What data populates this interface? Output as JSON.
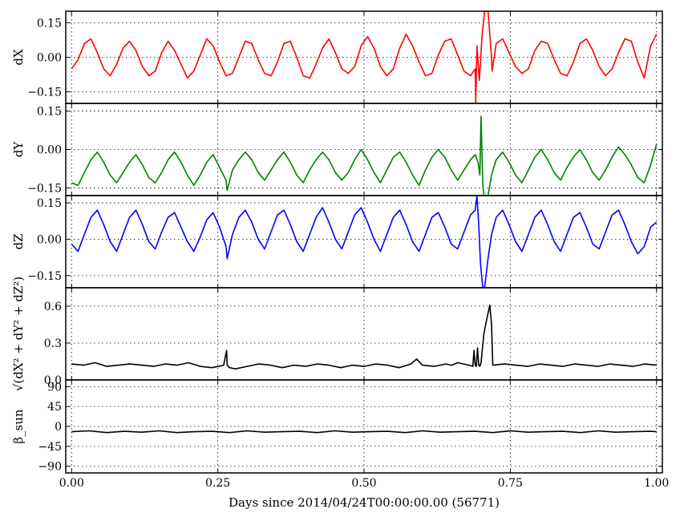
{
  "chart_data": {
    "type": "line",
    "xlabel": "Days since 2014/04/24T00:00:00.00 (56771)",
    "xlim": [
      -0.01,
      1.01
    ],
    "xticks": [
      0.0,
      0.25,
      0.5,
      0.75,
      1.0
    ],
    "xtick_labels": [
      "0.00",
      "0.25",
      "0.50",
      "0.75",
      "1.00"
    ],
    "grid": true,
    "panels": [
      {
        "key": "dx",
        "ylabel": "dX",
        "ylim": [
          -0.2,
          0.2
        ],
        "yticks": [
          -0.15,
          0.0,
          0.15
        ],
        "ytick_labels": [
          "−0.15",
          "0.00",
          "0.15"
        ],
        "color": "#ff0000",
        "series": {
          "name": "dX",
          "x": [
            0.0,
            0.011,
            0.022,
            0.033,
            0.044,
            0.055,
            0.066,
            0.077,
            0.088,
            0.099,
            0.11,
            0.121,
            0.132,
            0.143,
            0.154,
            0.165,
            0.176,
            0.187,
            0.198,
            0.209,
            0.22,
            0.231,
            0.242,
            0.253,
            0.264,
            0.275,
            0.286,
            0.297,
            0.308,
            0.319,
            0.33,
            0.341,
            0.352,
            0.363,
            0.374,
            0.385,
            0.396,
            0.407,
            0.418,
            0.429,
            0.44,
            0.451,
            0.462,
            0.473,
            0.484,
            0.495,
            0.506,
            0.517,
            0.528,
            0.539,
            0.55,
            0.561,
            0.572,
            0.583,
            0.594,
            0.605,
            0.616,
            0.627,
            0.638,
            0.649,
            0.66,
            0.671,
            0.682,
            0.69,
            0.691,
            0.693,
            0.697,
            0.702,
            0.706,
            0.712,
            0.718,
            0.719,
            0.726,
            0.737,
            0.748,
            0.759,
            0.77,
            0.781,
            0.792,
            0.803,
            0.814,
            0.825,
            0.836,
            0.847,
            0.858,
            0.869,
            0.88,
            0.891,
            0.902,
            0.913,
            0.924,
            0.935,
            0.946,
            0.957,
            0.968,
            0.979,
            0.99,
            1.0
          ],
          "y": [
            -0.05,
            -0.01,
            0.06,
            0.08,
            0.02,
            -0.05,
            -0.08,
            -0.03,
            0.04,
            0.07,
            0.03,
            -0.04,
            -0.08,
            -0.06,
            0.02,
            0.07,
            0.03,
            -0.03,
            -0.09,
            -0.06,
            0.01,
            0.08,
            0.05,
            -0.02,
            -0.08,
            -0.07,
            0.0,
            0.07,
            0.06,
            -0.01,
            -0.07,
            -0.08,
            -0.02,
            0.06,
            0.07,
            0.0,
            -0.08,
            -0.09,
            -0.03,
            0.04,
            0.08,
            0.02,
            -0.05,
            -0.07,
            -0.04,
            0.05,
            0.09,
            0.04,
            -0.04,
            -0.08,
            -0.05,
            0.04,
            0.1,
            0.05,
            -0.02,
            -0.08,
            -0.07,
            0.01,
            0.07,
            0.08,
            0.01,
            -0.06,
            -0.08,
            -0.05,
            -0.2,
            0.05,
            -0.1,
            0.1,
            0.2,
            0.2,
            0.0,
            -0.06,
            0.06,
            0.08,
            0.02,
            -0.04,
            -0.07,
            -0.05,
            0.03,
            0.07,
            0.06,
            -0.01,
            -0.07,
            -0.08,
            -0.02,
            0.06,
            0.08,
            0.03,
            -0.04,
            -0.08,
            -0.05,
            0.02,
            0.08,
            0.07,
            -0.02,
            -0.09,
            0.05,
            0.1
          ]
        }
      },
      {
        "key": "dy",
        "ylabel": "dY",
        "ylim": [
          -0.18,
          0.18
        ],
        "yticks": [
          -0.15,
          0.0,
          0.15
        ],
        "ytick_labels": [
          "−0.15",
          "0.00",
          "0.15"
        ],
        "color": "#008000",
        "series": {
          "name": "dY",
          "x": [
            0.0,
            0.011,
            0.022,
            0.033,
            0.044,
            0.055,
            0.066,
            0.077,
            0.088,
            0.099,
            0.11,
            0.121,
            0.132,
            0.143,
            0.154,
            0.165,
            0.176,
            0.187,
            0.198,
            0.209,
            0.22,
            0.231,
            0.242,
            0.253,
            0.264,
            0.266,
            0.275,
            0.286,
            0.297,
            0.308,
            0.319,
            0.33,
            0.341,
            0.352,
            0.363,
            0.374,
            0.385,
            0.396,
            0.407,
            0.418,
            0.429,
            0.44,
            0.451,
            0.462,
            0.473,
            0.484,
            0.495,
            0.506,
            0.517,
            0.528,
            0.539,
            0.55,
            0.561,
            0.572,
            0.583,
            0.594,
            0.605,
            0.616,
            0.627,
            0.638,
            0.649,
            0.66,
            0.671,
            0.682,
            0.69,
            0.695,
            0.698,
            0.7,
            0.703,
            0.705,
            0.712,
            0.718,
            0.726,
            0.737,
            0.748,
            0.759,
            0.77,
            0.781,
            0.792,
            0.803,
            0.814,
            0.825,
            0.836,
            0.847,
            0.858,
            0.869,
            0.88,
            0.891,
            0.902,
            0.913,
            0.924,
            0.935,
            0.946,
            0.957,
            0.968,
            0.979,
            0.99,
            1.0
          ],
          "y": [
            -0.13,
            -0.14,
            -0.09,
            -0.04,
            -0.01,
            -0.05,
            -0.1,
            -0.13,
            -0.09,
            -0.05,
            -0.02,
            -0.06,
            -0.11,
            -0.13,
            -0.09,
            -0.04,
            -0.01,
            -0.05,
            -0.1,
            -0.14,
            -0.1,
            -0.05,
            -0.02,
            -0.07,
            -0.12,
            -0.16,
            -0.08,
            -0.04,
            -0.01,
            -0.04,
            -0.09,
            -0.12,
            -0.08,
            -0.04,
            -0.01,
            -0.05,
            -0.1,
            -0.13,
            -0.08,
            -0.04,
            -0.01,
            -0.04,
            -0.09,
            -0.12,
            -0.09,
            -0.04,
            0.0,
            -0.04,
            -0.09,
            -0.13,
            -0.08,
            -0.03,
            -0.01,
            -0.05,
            -0.1,
            -0.14,
            -0.08,
            -0.03,
            0.0,
            -0.03,
            -0.08,
            -0.12,
            -0.08,
            -0.04,
            -0.02,
            -0.05,
            -0.1,
            0.13,
            -0.14,
            -0.18,
            -0.18,
            -0.1,
            -0.04,
            -0.01,
            -0.05,
            -0.1,
            -0.13,
            -0.08,
            -0.03,
            0.0,
            -0.04,
            -0.09,
            -0.12,
            -0.07,
            -0.03,
            0.0,
            -0.04,
            -0.09,
            -0.12,
            -0.08,
            -0.03,
            0.01,
            -0.02,
            -0.06,
            -0.11,
            -0.13,
            -0.06,
            0.02
          ]
        }
      },
      {
        "key": "dz",
        "ylabel": "dZ",
        "ylim": [
          -0.2,
          0.18
        ],
        "yticks": [
          -0.15,
          0.0,
          0.15
        ],
        "ytick_labels": [
          "−0.15",
          "0.00",
          "0.15"
        ],
        "color": "#0000ff",
        "series": {
          "name": "dZ",
          "x": [
            0.0,
            0.011,
            0.022,
            0.033,
            0.044,
            0.055,
            0.066,
            0.077,
            0.088,
            0.099,
            0.11,
            0.121,
            0.132,
            0.143,
            0.154,
            0.165,
            0.176,
            0.187,
            0.198,
            0.209,
            0.22,
            0.231,
            0.242,
            0.253,
            0.264,
            0.266,
            0.275,
            0.286,
            0.297,
            0.308,
            0.319,
            0.33,
            0.341,
            0.352,
            0.363,
            0.374,
            0.385,
            0.396,
            0.407,
            0.418,
            0.429,
            0.44,
            0.451,
            0.462,
            0.473,
            0.484,
            0.495,
            0.506,
            0.517,
            0.528,
            0.539,
            0.55,
            0.561,
            0.572,
            0.583,
            0.594,
            0.605,
            0.616,
            0.627,
            0.638,
            0.649,
            0.66,
            0.671,
            0.682,
            0.69,
            0.693,
            0.696,
            0.699,
            0.703,
            0.706,
            0.712,
            0.718,
            0.726,
            0.737,
            0.748,
            0.759,
            0.77,
            0.781,
            0.792,
            0.803,
            0.814,
            0.825,
            0.836,
            0.847,
            0.858,
            0.869,
            0.88,
            0.891,
            0.902,
            0.913,
            0.924,
            0.935,
            0.946,
            0.957,
            0.968,
            0.979,
            0.99,
            1.0
          ],
          "y": [
            -0.02,
            -0.05,
            0.02,
            0.09,
            0.12,
            0.06,
            -0.01,
            -0.05,
            0.02,
            0.09,
            0.12,
            0.06,
            -0.01,
            -0.04,
            0.03,
            0.09,
            0.11,
            0.05,
            -0.01,
            -0.05,
            0.01,
            0.08,
            0.11,
            0.05,
            -0.03,
            -0.08,
            0.02,
            0.09,
            0.12,
            0.07,
            0.0,
            -0.04,
            0.03,
            0.1,
            0.12,
            0.06,
            -0.01,
            -0.05,
            0.02,
            0.09,
            0.13,
            0.07,
            0.0,
            -0.04,
            0.03,
            0.1,
            0.13,
            0.07,
            0.0,
            -0.05,
            0.02,
            0.09,
            0.12,
            0.06,
            -0.01,
            -0.05,
            0.02,
            0.09,
            0.11,
            0.05,
            -0.02,
            -0.04,
            0.03,
            0.1,
            0.12,
            0.18,
            0.06,
            -0.1,
            -0.2,
            -0.2,
            -0.08,
            0.02,
            0.09,
            0.12,
            0.06,
            -0.01,
            -0.05,
            0.02,
            0.09,
            0.12,
            0.06,
            -0.01,
            -0.05,
            0.02,
            0.09,
            0.11,
            0.05,
            -0.02,
            -0.04,
            0.03,
            0.1,
            0.12,
            0.06,
            -0.01,
            -0.06,
            -0.03,
            0.05,
            0.07
          ]
        }
      },
      {
        "key": "dr",
        "ylabel": "√(dX² + dY² + dZ²)",
        "ylim": [
          0.0,
          0.75
        ],
        "yticks": [
          0.0,
          0.3,
          0.6
        ],
        "ytick_labels": [
          "0.0",
          "0.3",
          "0.6"
        ],
        "color": "#000000",
        "series": {
          "name": "sqrt(dX^2+dY^2+dZ^2)",
          "x": [
            0.0,
            0.02,
            0.04,
            0.06,
            0.08,
            0.1,
            0.12,
            0.14,
            0.16,
            0.18,
            0.2,
            0.22,
            0.24,
            0.26,
            0.265,
            0.266,
            0.27,
            0.28,
            0.3,
            0.32,
            0.34,
            0.36,
            0.38,
            0.4,
            0.42,
            0.44,
            0.46,
            0.48,
            0.5,
            0.52,
            0.54,
            0.56,
            0.58,
            0.59,
            0.6,
            0.62,
            0.64,
            0.65,
            0.66,
            0.68,
            0.686,
            0.688,
            0.69,
            0.692,
            0.694,
            0.696,
            0.698,
            0.7,
            0.705,
            0.71,
            0.715,
            0.718,
            0.72,
            0.74,
            0.76,
            0.78,
            0.8,
            0.82,
            0.84,
            0.86,
            0.88,
            0.9,
            0.92,
            0.94,
            0.96,
            0.98,
            1.0
          ],
          "y": [
            0.13,
            0.12,
            0.14,
            0.11,
            0.12,
            0.13,
            0.12,
            0.11,
            0.13,
            0.12,
            0.14,
            0.11,
            0.1,
            0.12,
            0.24,
            0.12,
            0.1,
            0.09,
            0.11,
            0.13,
            0.12,
            0.1,
            0.12,
            0.11,
            0.13,
            0.12,
            0.1,
            0.12,
            0.11,
            0.13,
            0.12,
            0.1,
            0.13,
            0.17,
            0.12,
            0.11,
            0.13,
            0.12,
            0.14,
            0.12,
            0.11,
            0.24,
            0.12,
            0.11,
            0.26,
            0.12,
            0.11,
            0.14,
            0.38,
            0.5,
            0.61,
            0.45,
            0.12,
            0.13,
            0.12,
            0.11,
            0.13,
            0.12,
            0.11,
            0.13,
            0.12,
            0.11,
            0.13,
            0.12,
            0.11,
            0.13,
            0.12
          ]
        }
      },
      {
        "key": "beta",
        "ylabel": "β_sun",
        "ylim": [
          -105,
          105
        ],
        "yticks": [
          -90,
          -45,
          0,
          45,
          90
        ],
        "ytick_labels": [
          "−90",
          "−45",
          "0",
          "45",
          "90"
        ],
        "color": "#000000",
        "series": {
          "name": "beta_sun",
          "x": [
            0.0,
            0.03,
            0.06,
            0.09,
            0.12,
            0.15,
            0.18,
            0.21,
            0.24,
            0.27,
            0.3,
            0.33,
            0.36,
            0.39,
            0.42,
            0.45,
            0.48,
            0.51,
            0.54,
            0.57,
            0.6,
            0.63,
            0.66,
            0.69,
            0.72,
            0.75,
            0.78,
            0.81,
            0.84,
            0.87,
            0.9,
            0.93,
            0.96,
            0.99,
            1.0
          ],
          "y": [
            -12,
            -10,
            -14,
            -11,
            -13,
            -10,
            -14,
            -12,
            -11,
            -14,
            -10,
            -13,
            -12,
            -11,
            -14,
            -10,
            -13,
            -12,
            -11,
            -14,
            -10,
            -13,
            -12,
            -11,
            -14,
            -10,
            -13,
            -12,
            -11,
            -14,
            -10,
            -13,
            -12,
            -11,
            -12
          ]
        }
      }
    ]
  }
}
